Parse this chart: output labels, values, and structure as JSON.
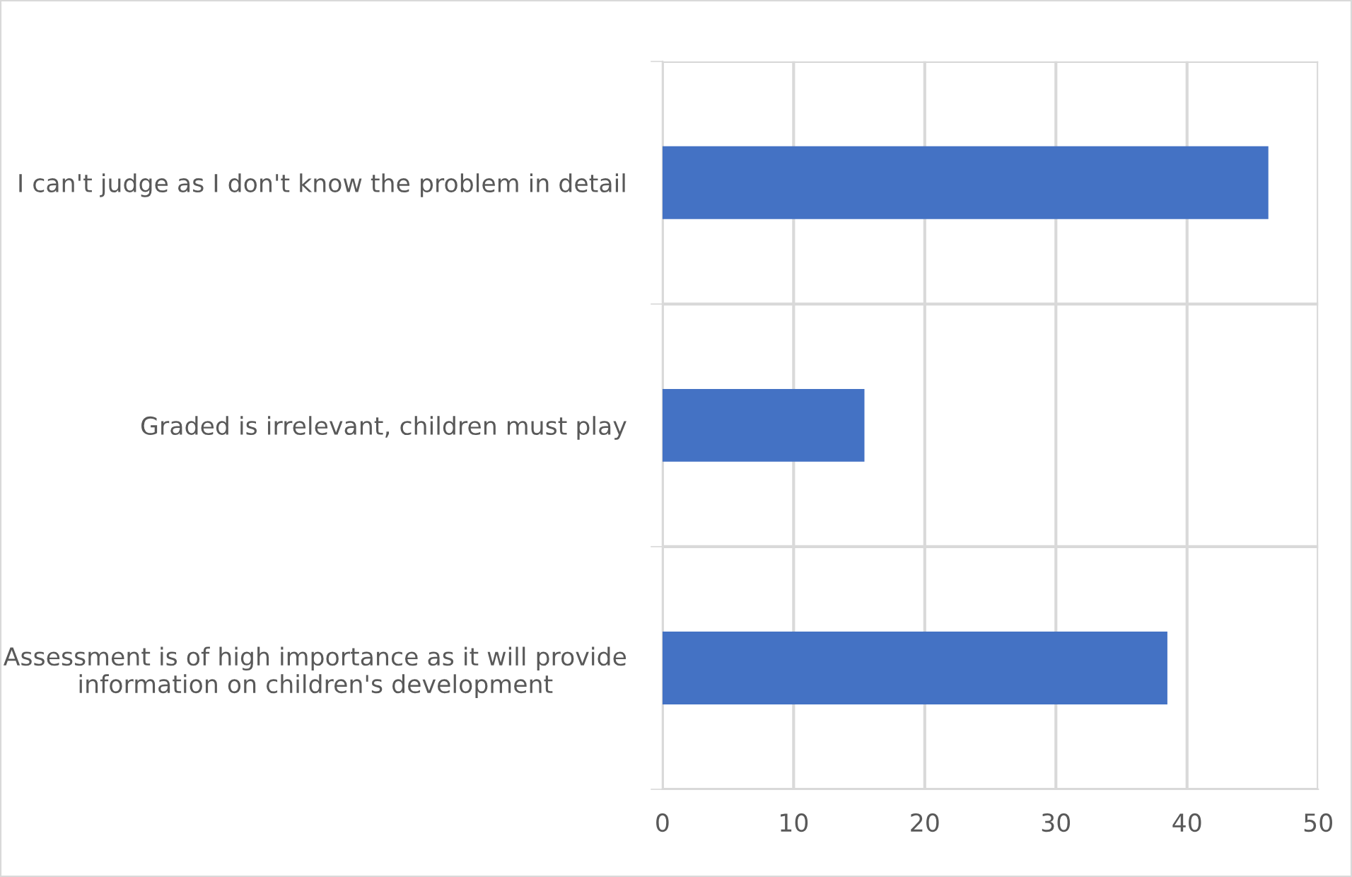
{
  "chart_data": {
    "type": "bar",
    "orientation": "horizontal",
    "categories": [
      "I can't judge as I don't know the problem in detail",
      "Graded is irrelevant, children must play",
      "Assessment is of high importance as it will provide information on children's development"
    ],
    "values": [
      46.2,
      15.4,
      38.5
    ],
    "color": "#4472c4",
    "xlim": [
      0,
      50
    ],
    "xticks": [
      0,
      10,
      20,
      30,
      40,
      50
    ],
    "grid": true
  }
}
